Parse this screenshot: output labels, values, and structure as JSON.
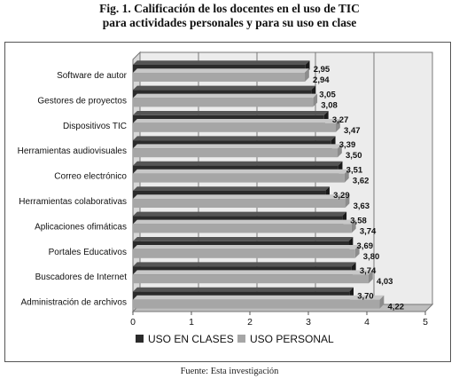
{
  "figure": {
    "title_line1": "Fig. 1. Calificación de los docentes en el uso de TIC",
    "title_line2": "para actividades personales y para su uso en clase",
    "source": "Fuente: Esta investigación"
  },
  "colors": {
    "clases": "#2b2b2b",
    "personal": "#a6a6a6",
    "background_wall": "#ececec"
  },
  "chart_data": {
    "type": "bar",
    "orientation": "horizontal",
    "style": "3d",
    "categories": [
      "Software de autor",
      "Gestores de proyectos",
      "Dispositivos TIC",
      "Herramientas audiovisuales",
      "Correo electrónico",
      "Herramientas colaborativas",
      "Aplicaciones ofimáticas",
      "Portales Educativos",
      "Buscadores de Internet",
      "Administración de archivos"
    ],
    "series": [
      {
        "name": "USO EN CLASES",
        "values": [
          2.95,
          3.05,
          3.27,
          3.39,
          3.51,
          3.29,
          3.58,
          3.69,
          3.74,
          3.7
        ],
        "labels": [
          "2,95",
          "3,05",
          "3,27",
          "3,39",
          "3,51",
          "3,29",
          "3,58",
          "3,69",
          "3,74",
          "3,70"
        ]
      },
      {
        "name": "USO PERSONAL",
        "values": [
          2.94,
          3.08,
          3.47,
          3.5,
          3.62,
          3.63,
          3.74,
          3.8,
          4.03,
          4.22
        ],
        "labels": [
          "2,94",
          "3,08",
          "3,47",
          "3,50",
          "3,62",
          "3,63",
          "3,74",
          "3,80",
          "4,03",
          "4,22"
        ]
      }
    ],
    "x_ticks": [
      0,
      1,
      2,
      3,
      4,
      5
    ],
    "xlim": [
      0,
      5
    ],
    "grid": true,
    "legend_position": "bottom-left"
  }
}
